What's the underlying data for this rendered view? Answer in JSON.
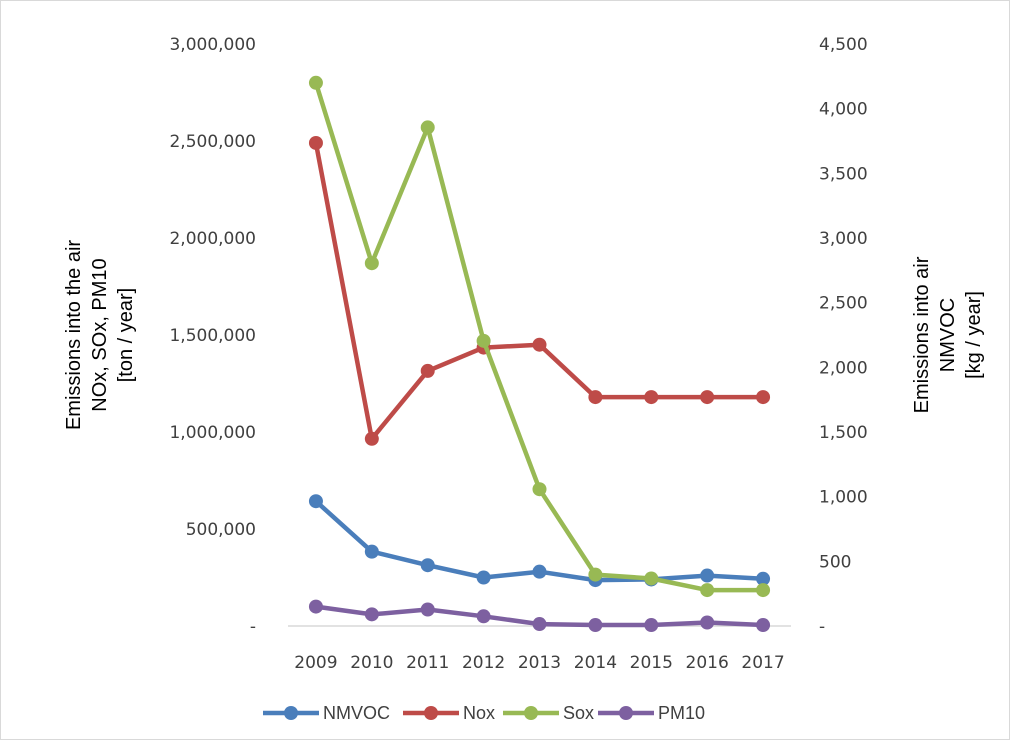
{
  "chart_data": {
    "type": "line",
    "x": [
      "2009",
      "2010",
      "2011",
      "2012",
      "2013",
      "2014",
      "2015",
      "2016",
      "2017"
    ],
    "y_left": {
      "label_lines": [
        "Emissions into the air",
        "NOx, SOx, PM10",
        "[ton / year]"
      ],
      "range": [
        0,
        3000000
      ],
      "ticks": [
        {
          "value": 0,
          "label": "-"
        },
        {
          "value": 500000,
          "label": "500,000"
        },
        {
          "value": 1000000,
          "label": "1,000,000"
        },
        {
          "value": 1500000,
          "label": "1,500,000"
        },
        {
          "value": 2000000,
          "label": "2,000,000"
        },
        {
          "value": 2500000,
          "label": "2,500,000"
        },
        {
          "value": 3000000,
          "label": "3,000,000"
        }
      ]
    },
    "y_right": {
      "label_lines": [
        "Emissions into air",
        "NMVOC",
        "[kg / year]"
      ],
      "range": [
        0,
        4500
      ],
      "ticks": [
        {
          "value": 0,
          "label": "-"
        },
        {
          "value": 500,
          "label": "500"
        },
        {
          "value": 1000,
          "label": "1,000"
        },
        {
          "value": 1500,
          "label": "1,500"
        },
        {
          "value": 2000,
          "label": "2,000"
        },
        {
          "value": 2500,
          "label": "2,500"
        },
        {
          "value": 3000,
          "label": "3,000"
        },
        {
          "value": 3500,
          "label": "3,500"
        },
        {
          "value": 4000,
          "label": "4,000"
        },
        {
          "value": 4500,
          "label": "4,500"
        }
      ]
    },
    "series": [
      {
        "name": "NMVOC",
        "axis": "right",
        "color": "#4a7ebb",
        "values": [
          965,
          575,
          470,
          375,
          420,
          355,
          360,
          390,
          365
        ]
      },
      {
        "name": "Nox",
        "axis": "left",
        "color": "#be4b48",
        "values": [
          2490000,
          965000,
          1315000,
          1435000,
          1450000,
          1180000,
          1180000,
          1180000,
          1180000
        ]
      },
      {
        "name": "Sox",
        "axis": "left",
        "color": "#98b954",
        "values": [
          2800000,
          1870000,
          2570000,
          1470000,
          705000,
          265000,
          245000,
          185000,
          185000
        ]
      },
      {
        "name": "PM10",
        "axis": "left",
        "color": "#7d60a0",
        "values": [
          100000,
          60000,
          85000,
          50000,
          10000,
          5000,
          5000,
          18000,
          5000
        ]
      }
    ],
    "grid": false,
    "legend_position": "bottom"
  }
}
